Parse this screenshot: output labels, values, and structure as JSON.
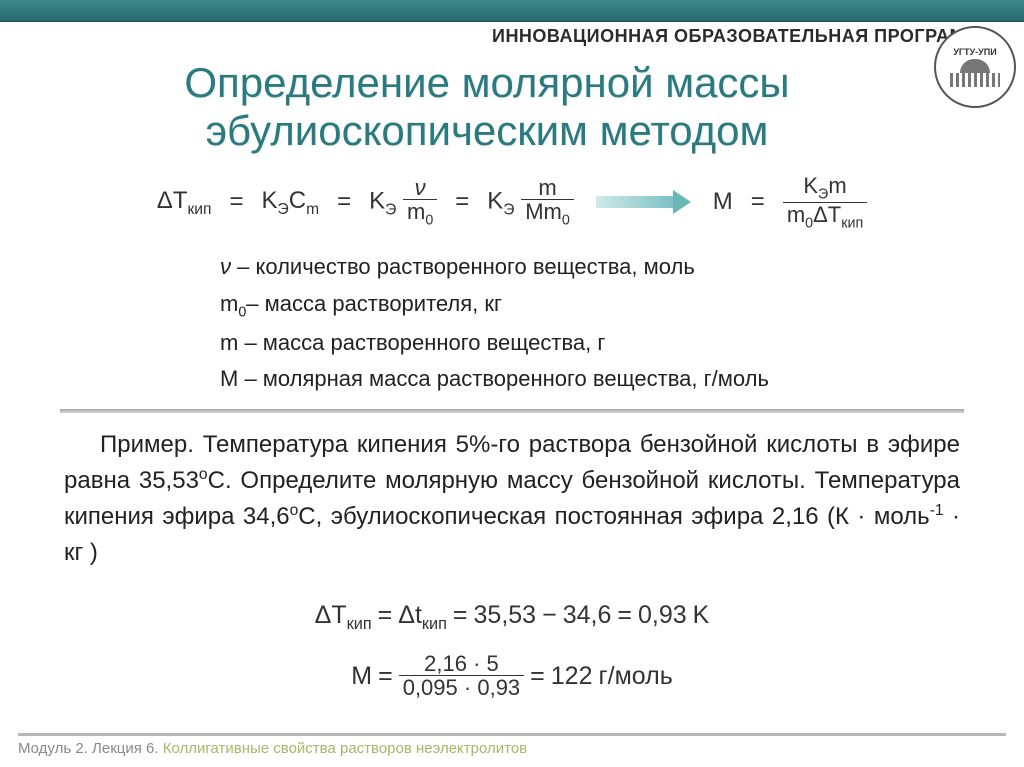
{
  "header": {
    "program_label": "ИННОВАЦИОННАЯ ОБРАЗОВАТЕЛЬНАЯ ПРОГРАММА",
    "logo_text": "УГТУ-УПИ"
  },
  "title": {
    "line1": "Определение молярной массы",
    "line2": "эбулиоскопическим методом"
  },
  "colors": {
    "title_color": "#2a7a7f",
    "top_bar_from": "#3a888d",
    "top_bar_to": "#2a6b70",
    "arrow_from": "#cfeaea",
    "arrow_to": "#7abfc2",
    "text_color": "#222222",
    "footer_gray": "#8a8a8a",
    "footer_green": "#a6b86a"
  },
  "formula": {
    "delta_T": "ΔT",
    "T_sub": "кип",
    "eq": "=",
    "K": "K",
    "K_sub": "Э",
    "Cm": "C",
    "Cm_sub": "m",
    "nu": "ν",
    "m0": "m",
    "m0_sub": "0",
    "m": "m",
    "M": "M",
    "Mm0": "Mm",
    "result_label": "M",
    "result_num": "K",
    "result_num2": "m",
    "result_den1": "m",
    "result_den2": "ΔT"
  },
  "definitions": {
    "d1_sym": "ν",
    "d1_text": " – количество растворенного вещества, моль",
    "d2_sym": "m",
    "d2_sub": "0",
    "d2_text": "– масса растворителя, кг",
    "d3_sym": "m",
    "d3_text": " – масса растворенного вещества, г",
    "d4_sym": "M",
    "d4_text": " – молярная масса растворенного вещества, г/моль"
  },
  "example": {
    "label": "Пример.",
    "text1": " Температура кипения 5%-го раствора бензойной кислоты в эфире равна 35,53",
    "deg": "o",
    "C": "C",
    "text2": ". Определите молярную массу бензойной кислоты. Температура кипения эфира 34,6",
    "text3": ", эбулиоскопическая постоянная эфира 2,16 (",
    "units": "К · моль",
    "units_sup": "-1",
    "units2": " · кг",
    "close": " )"
  },
  "calc": {
    "dT_upper": "ΔT",
    "dT_lower": "Δt",
    "sub_kip": "кип",
    "eq": "=",
    "v1": "35,53",
    "minus": "−",
    "v2": "34,6",
    "v3": "0,93",
    "unitK": "K",
    "M": "M",
    "num1": "2,16",
    "dot": "·",
    "num2": "5",
    "den1": "0,095",
    "den2": "0,93",
    "result": "122",
    "result_unit": "г/моль"
  },
  "footer": {
    "t1": "Модуль 2. Лекция 6. ",
    "t2": "Коллигативные свойства растворов неэлектролитов"
  }
}
